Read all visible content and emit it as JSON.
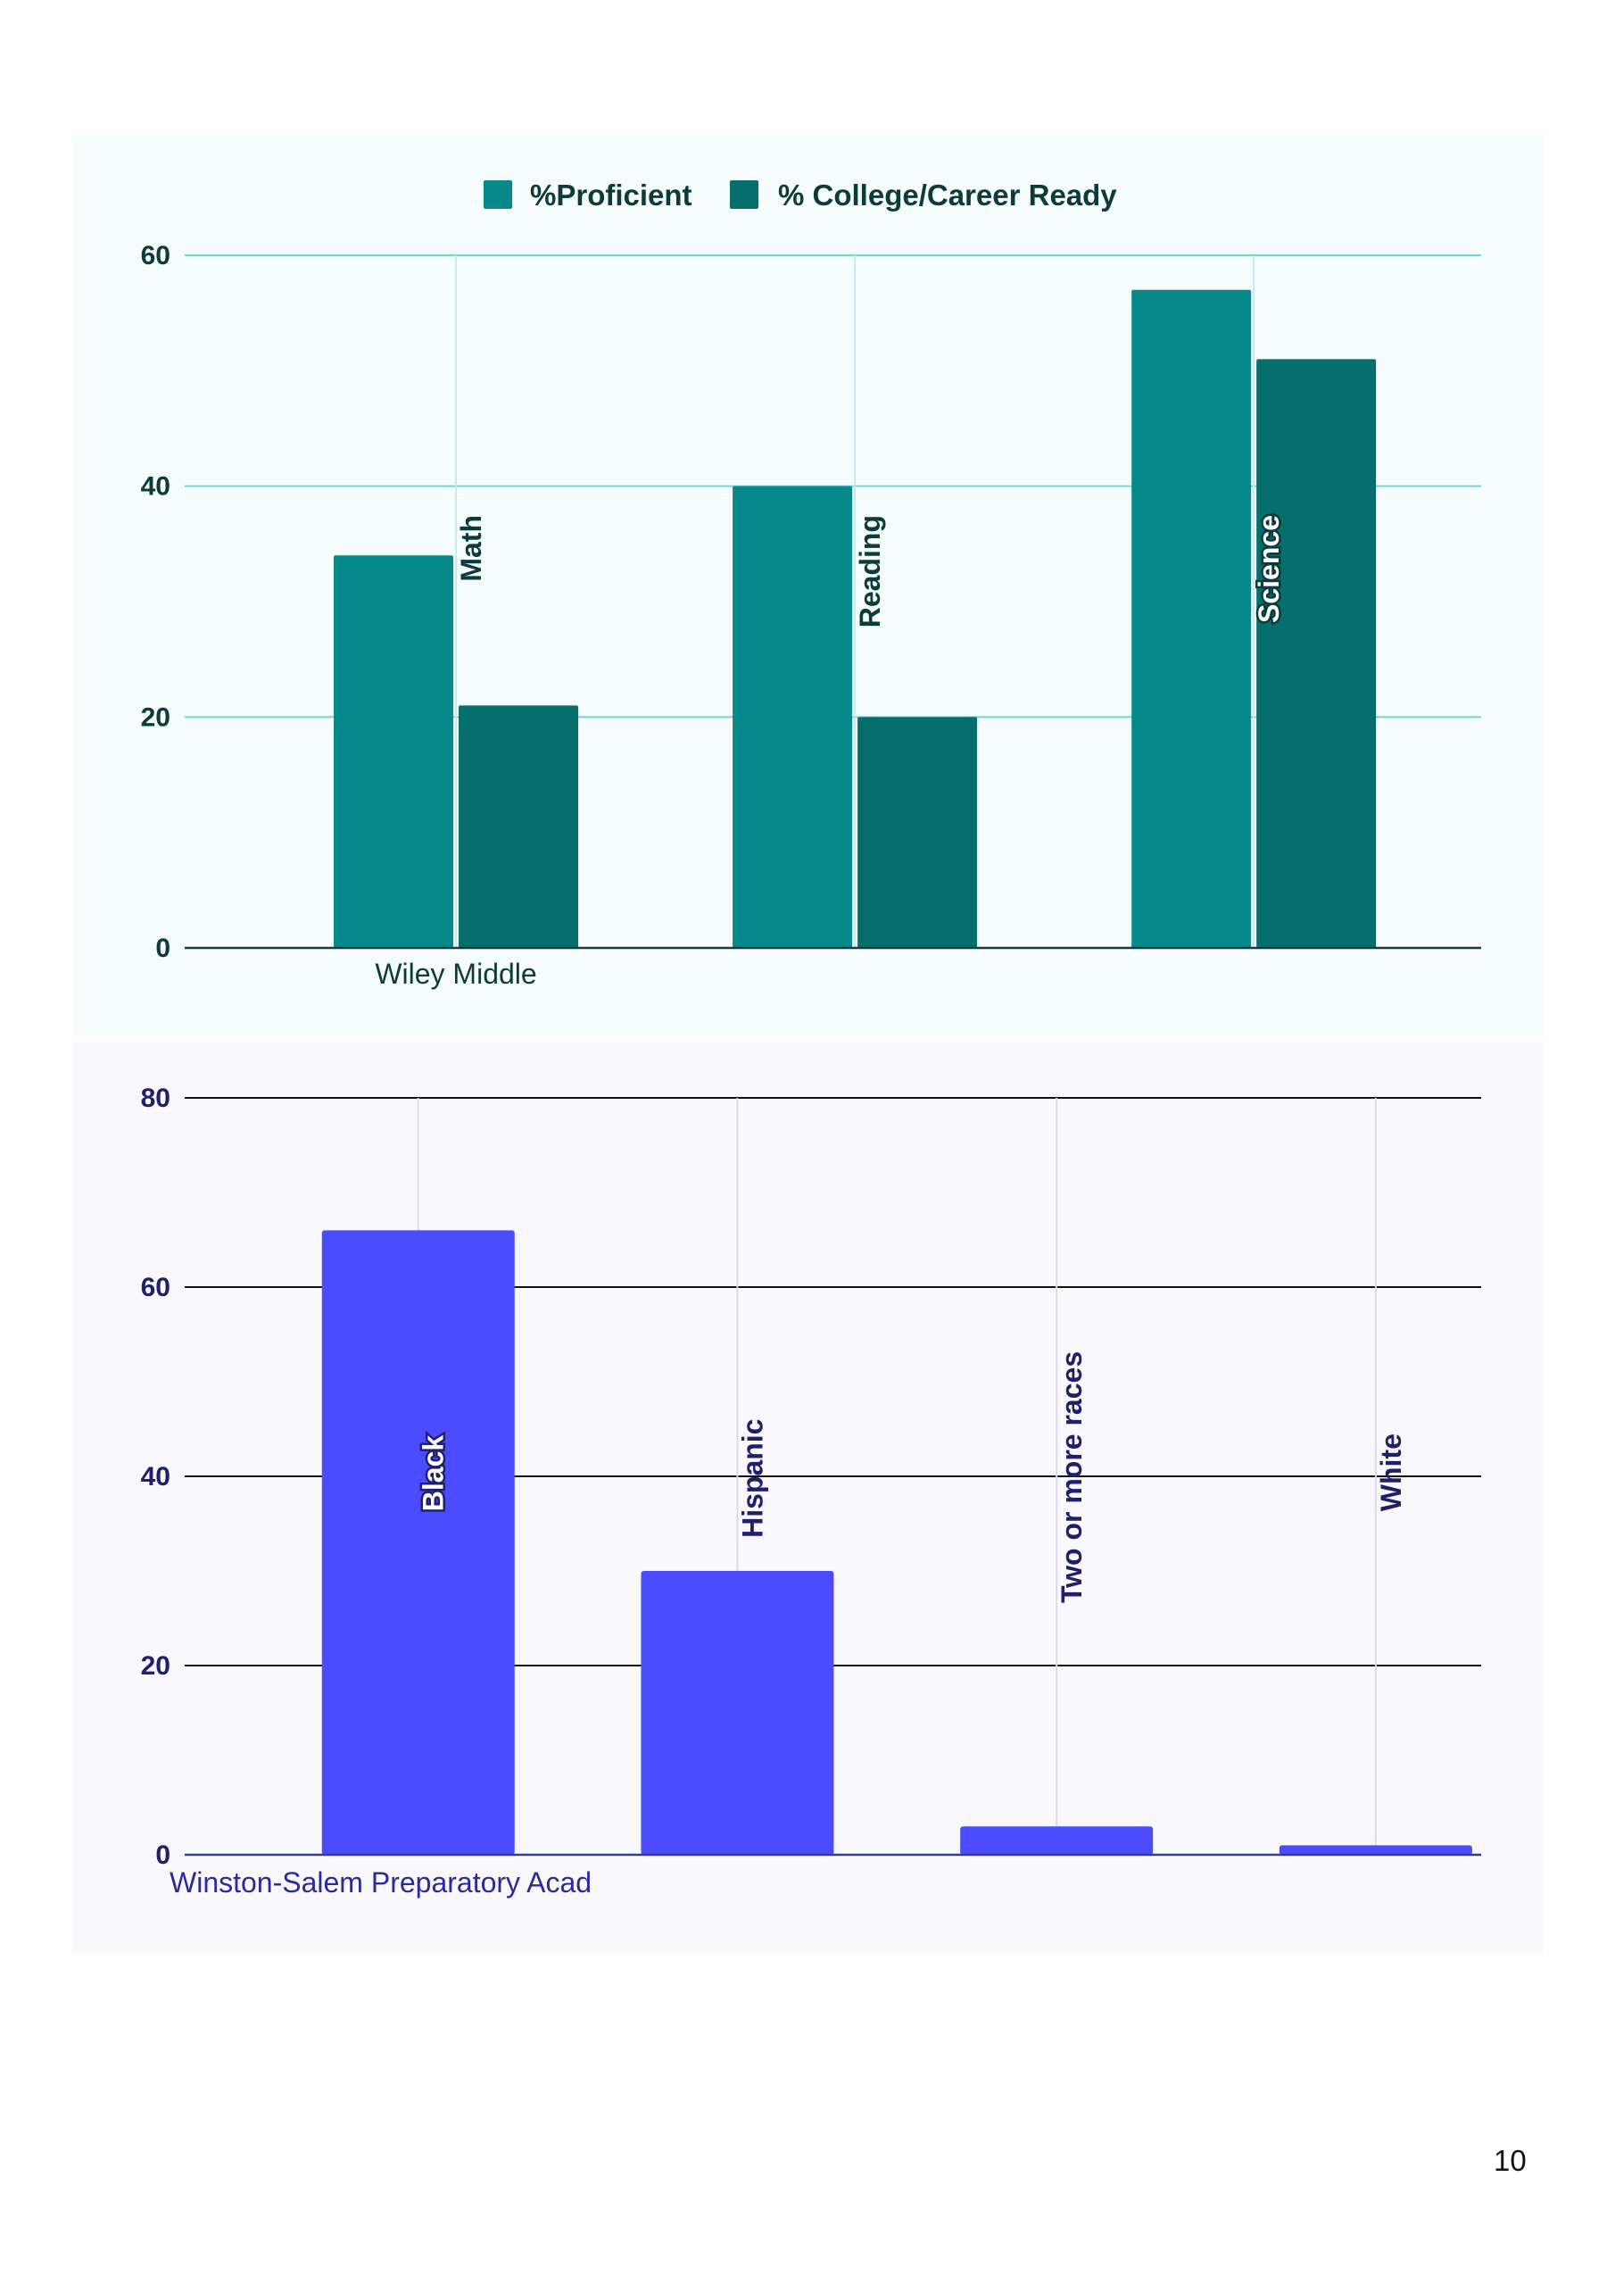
{
  "page": {
    "number": "10"
  },
  "colors": {
    "proficient": "#07888a",
    "ccr": "#076e6e",
    "chart1_grid": "#6fd6d6",
    "chart1_vgrid": "#c4ecec",
    "chart1_text": "#0b3b3b",
    "chart2_bar": "#4b4cff",
    "chart2_grid": "#111111",
    "chart2_vgrid": "#dadaea",
    "chart2_text": "#1f1f6b"
  },
  "chart_data": [
    {
      "type": "bar",
      "legend": [
        "%Proficient",
        "% College/Career Ready"
      ],
      "legend_position": "top-center",
      "x_group_label": "Wiley Middle",
      "categories": [
        "Math",
        "Reading",
        "Science"
      ],
      "series": [
        {
          "name": "%Proficient",
          "values": [
            34,
            40,
            57
          ]
        },
        {
          "name": "% College/Career Ready",
          "values": [
            21,
            20,
            51
          ]
        }
      ],
      "ylim": [
        0,
        60
      ],
      "yticks": [
        "0",
        "20",
        "40",
        "60"
      ],
      "grid": true
    },
    {
      "type": "bar",
      "x_group_label": "Winston-Salem Preparatory Acad",
      "categories": [
        "Black",
        "Hispanic",
        "Two or more races",
        "White"
      ],
      "values": [
        66,
        30,
        3,
        1
      ],
      "ylim": [
        0,
        80
      ],
      "yticks": [
        "0",
        "20",
        "40",
        "60",
        "80"
      ],
      "grid": true
    }
  ]
}
